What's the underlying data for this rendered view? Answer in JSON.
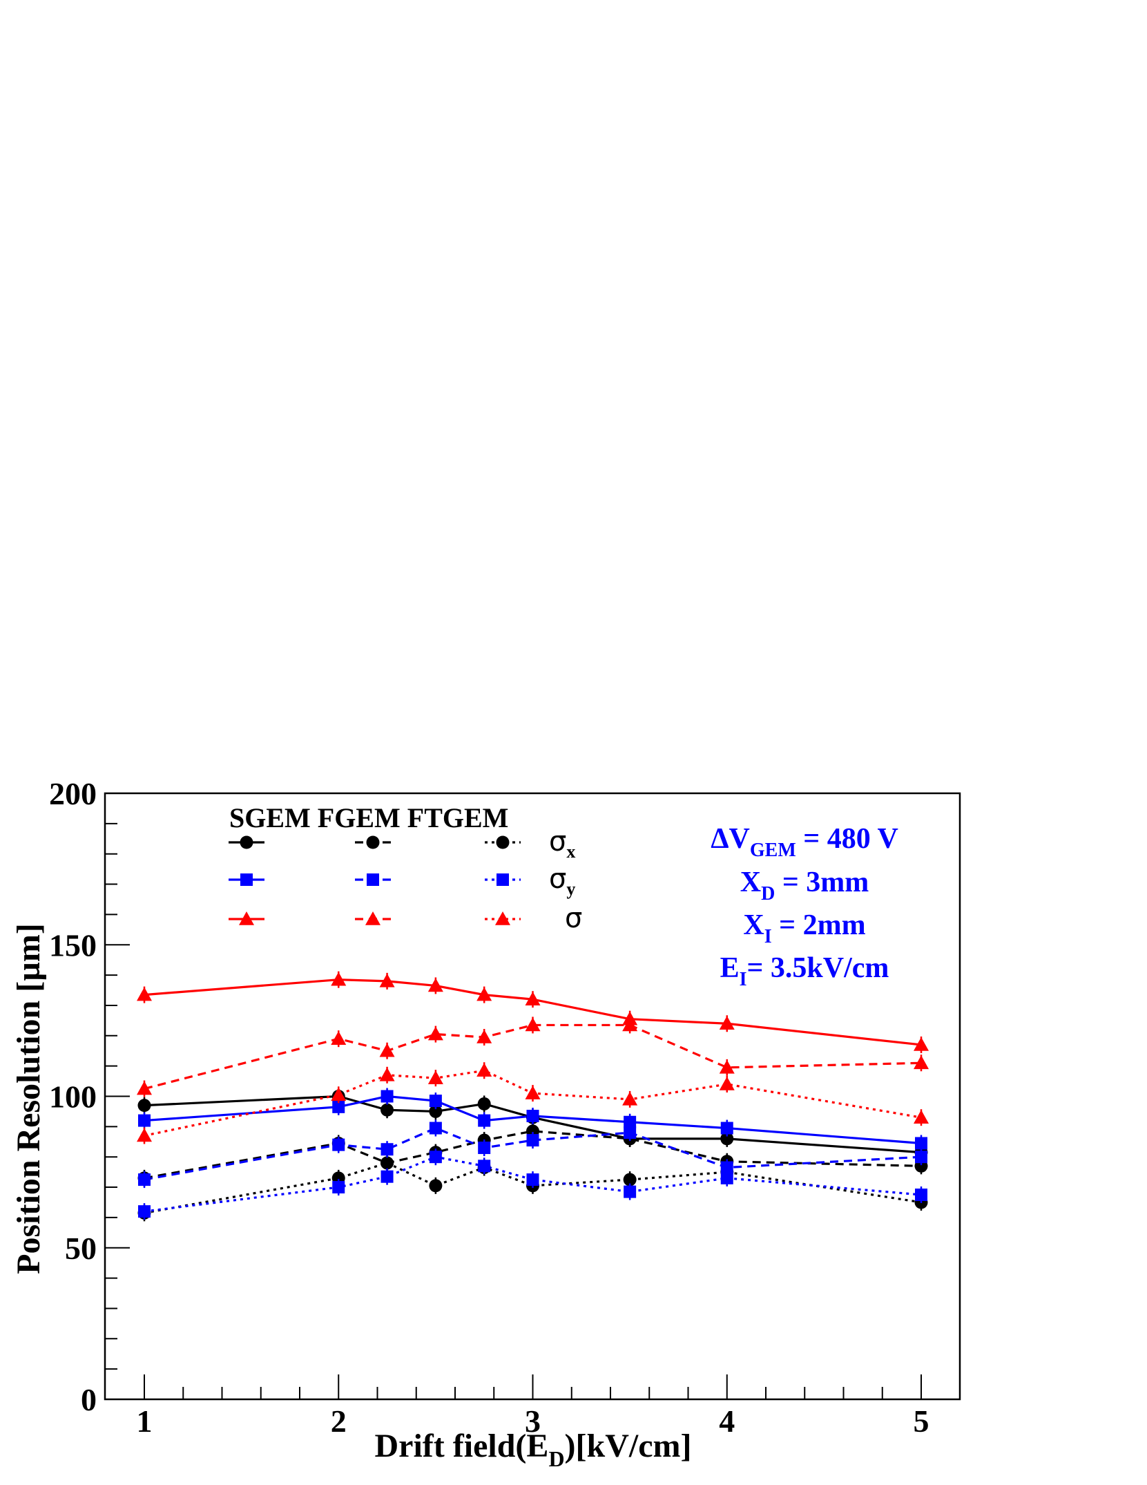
{
  "chart_data": {
    "type": "line",
    "xlabel": {
      "main": "Drift field(E",
      "sub": "D",
      "tail": ")[kV/cm]"
    },
    "ylabel": "Position Resolution [µm]",
    "xlim": [
      0.9,
      5.1
    ],
    "ylim": [
      0,
      200
    ],
    "xticks": [
      1,
      2,
      3,
      4,
      5
    ],
    "xtick_labels": [
      "1",
      "2",
      "3",
      "4",
      "5"
    ],
    "yticks": [
      0,
      50,
      100,
      150,
      200
    ],
    "ytick_labels": [
      "0",
      "50",
      "100",
      "150",
      "200"
    ],
    "grid": false,
    "legend": {
      "placement": "top-left",
      "header": "SGEM FGEM FTGEM",
      "rows": [
        {
          "symbol": "σ",
          "sub": "x",
          "color": "#000000",
          "marker": "circle"
        },
        {
          "symbol": "σ",
          "sub": "y",
          "color": "#0000ff",
          "marker": "square"
        },
        {
          "symbol": "σ",
          "sub": "",
          "color": "#ff0000",
          "marker": "triangle"
        }
      ],
      "columns": [
        "solid",
        "dashed",
        "dotted"
      ]
    },
    "annotations": [
      {
        "parts": [
          [
            "ΔV",
            ""
          ],
          [
            "GEM",
            "sub"
          ],
          [
            " = 480 V",
            ""
          ]
        ]
      },
      {
        "parts": [
          [
            "X",
            ""
          ],
          [
            "D",
            "sub"
          ],
          [
            " = 3mm",
            ""
          ]
        ]
      },
      {
        "parts": [
          [
            "X",
            ""
          ],
          [
            "I",
            "sub"
          ],
          [
            " = 2mm",
            ""
          ]
        ]
      },
      {
        "parts": [
          [
            "E",
            ""
          ],
          [
            "I",
            "sub"
          ],
          [
            "= 3.5kV/cm",
            ""
          ]
        ]
      }
    ],
    "x": [
      1,
      2,
      2.25,
      2.5,
      2.75,
      3,
      3.5,
      4,
      5
    ],
    "series": [
      {
        "group": "SGEM",
        "quantity": "σx",
        "color": "#000000",
        "marker": "circle",
        "dash": "solid",
        "values": [
          97,
          100,
          95.5,
          95,
          97.5,
          93,
          86,
          86,
          81.5
        ]
      },
      {
        "group": "FGEM",
        "quantity": "σx",
        "color": "#000000",
        "marker": "circle",
        "dash": "dashed",
        "values": [
          73,
          84.5,
          78,
          81.5,
          85.5,
          88.5,
          86,
          78.5,
          77
        ]
      },
      {
        "group": "FTGEM",
        "quantity": "σx",
        "color": "#000000",
        "marker": "circle",
        "dash": "dotted",
        "values": [
          61.5,
          73,
          78,
          70.5,
          76.5,
          70.5,
          72.5,
          75,
          65
        ]
      },
      {
        "group": "SGEM",
        "quantity": "σy",
        "color": "#0000ff",
        "marker": "square",
        "dash": "solid",
        "values": [
          92,
          96.5,
          100,
          98.5,
          92,
          93.5,
          91.5,
          89.5,
          84.5
        ]
      },
      {
        "group": "FGEM",
        "quantity": "σy",
        "color": "#0000ff",
        "marker": "square",
        "dash": "dashed",
        "values": [
          72.5,
          84,
          82.5,
          89.5,
          83,
          85.5,
          88,
          76.5,
          80
        ]
      },
      {
        "group": "FTGEM",
        "quantity": "σy",
        "color": "#0000ff",
        "marker": "square",
        "dash": "dotted",
        "values": [
          62,
          70,
          73.5,
          80,
          77,
          72.5,
          68.5,
          73,
          67.5
        ]
      },
      {
        "group": "SGEM",
        "quantity": "σ",
        "color": "#ff0000",
        "marker": "triangle",
        "dash": "solid",
        "values": [
          133.5,
          138.5,
          138,
          136.5,
          133.5,
          132,
          125.5,
          124,
          117
        ]
      },
      {
        "group": "FGEM",
        "quantity": "σ",
        "color": "#ff0000",
        "marker": "triangle",
        "dash": "dashed",
        "values": [
          102.5,
          119,
          115,
          120.5,
          119.5,
          123.5,
          123.5,
          109.5,
          111
        ]
      },
      {
        "group": "FTGEM",
        "quantity": "σ",
        "color": "#ff0000",
        "marker": "triangle",
        "dash": "dotted",
        "values": [
          87,
          100.5,
          107,
          106,
          108.5,
          101,
          99,
          104,
          93
        ]
      }
    ]
  }
}
